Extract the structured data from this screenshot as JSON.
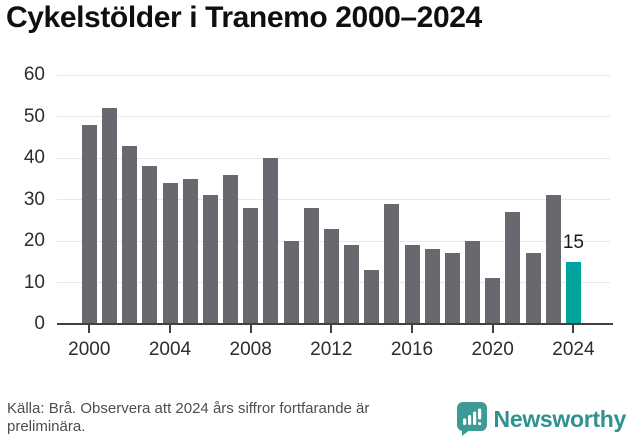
{
  "title": "Cykelstölder i Tranemo 2000–2024",
  "source_note_lines": [
    "Källa: Brå. Observera att 2024 års siffror fortfarande är",
    "preliminära."
  ],
  "branding": {
    "name": "Newsworthy",
    "logo_icon": "newsworthy-speech-bubble-bar-chart-icon",
    "icon_color": "#3d9b97",
    "text_color": "#31918f"
  },
  "colors": {
    "bar": "#68686f",
    "highlight": "#00a69d",
    "gridline": "#e8e8e8",
    "axis": "#404040",
    "axis_label": "#2d2d2d",
    "value_label": "#1a1a1a"
  },
  "chart_data": {
    "type": "bar",
    "title": "Cykelstölder i Tranemo 2000–2024",
    "categories": [
      2000,
      2001,
      2002,
      2003,
      2004,
      2005,
      2006,
      2007,
      2008,
      2009,
      2010,
      2011,
      2012,
      2013,
      2014,
      2015,
      2016,
      2017,
      2018,
      2019,
      2020,
      2021,
      2022,
      2023,
      2024
    ],
    "values": [
      48,
      52,
      43,
      38,
      34,
      35,
      31,
      36,
      28,
      40,
      20,
      28,
      23,
      19,
      13,
      29,
      19,
      18,
      17,
      20,
      11,
      27,
      17,
      31,
      15
    ],
    "highlight_index": 24,
    "highlight_label": "15",
    "xlabel": "",
    "ylabel": "",
    "ylim": [
      0,
      60
    ],
    "yticks": [
      0,
      10,
      20,
      30,
      40,
      50,
      60
    ],
    "xticks": [
      2000,
      2004,
      2008,
      2012,
      2016,
      2020,
      2024
    ],
    "grid": true,
    "legend": "none",
    "bar_color": "#68686f",
    "highlight_color": "#00a69d"
  }
}
